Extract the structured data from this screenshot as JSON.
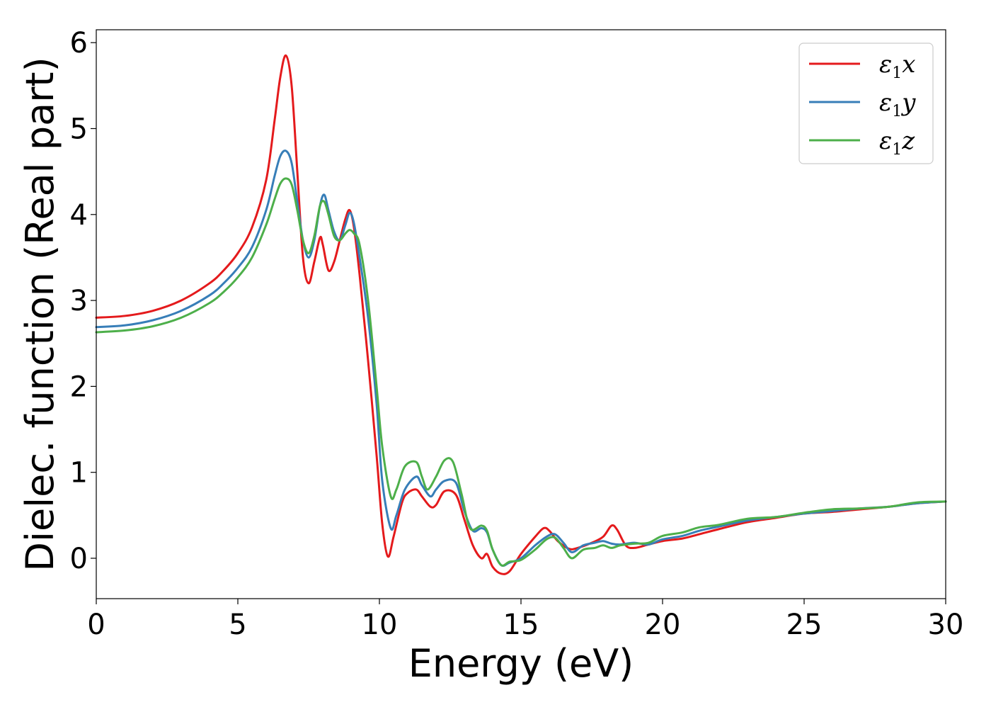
{
  "chart_data": {
    "type": "line",
    "title": "",
    "xlabel": "Energy (eV)",
    "ylabel": "Dielec. function (Real part)",
    "xlim": [
      0,
      30
    ],
    "ylim": [
      -0.47,
      6.15
    ],
    "xticks": [
      0,
      5,
      10,
      15,
      20,
      25,
      30
    ],
    "yticks": [
      0,
      1,
      2,
      3,
      4,
      5,
      6
    ],
    "xtick_labels": [
      "0",
      "5",
      "10",
      "15",
      "20",
      "25",
      "30"
    ],
    "ytick_labels": [
      "0",
      "1",
      "2",
      "3",
      "4",
      "5",
      "6"
    ],
    "grid": false,
    "legend_position": "top-right",
    "series": [
      {
        "name": "ε₁x",
        "legend": {
          "base": "ε",
          "sub": "1",
          "suffix": "x"
        },
        "color": "#e41a1c",
        "points": [
          [
            0,
            2.8
          ],
          [
            1,
            2.82
          ],
          [
            2,
            2.88
          ],
          [
            3,
            3.0
          ],
          [
            4,
            3.2
          ],
          [
            4.5,
            3.35
          ],
          [
            5,
            3.55
          ],
          [
            5.5,
            3.85
          ],
          [
            6,
            4.4
          ],
          [
            6.3,
            5.1
          ],
          [
            6.5,
            5.6
          ],
          [
            6.7,
            5.85
          ],
          [
            6.9,
            5.5
          ],
          [
            7.1,
            4.5
          ],
          [
            7.3,
            3.5
          ],
          [
            7.5,
            3.2
          ],
          [
            7.7,
            3.45
          ],
          [
            7.9,
            3.73
          ],
          [
            8.0,
            3.65
          ],
          [
            8.2,
            3.35
          ],
          [
            8.4,
            3.45
          ],
          [
            8.6,
            3.7
          ],
          [
            8.8,
            3.95
          ],
          [
            8.95,
            4.05
          ],
          [
            9.1,
            3.85
          ],
          [
            9.3,
            3.3
          ],
          [
            9.6,
            2.3
          ],
          [
            9.9,
            1.2
          ],
          [
            10.1,
            0.4
          ],
          [
            10.3,
            0.02
          ],
          [
            10.5,
            0.25
          ],
          [
            10.8,
            0.65
          ],
          [
            11.0,
            0.76
          ],
          [
            11.3,
            0.8
          ],
          [
            11.5,
            0.72
          ],
          [
            11.8,
            0.6
          ],
          [
            12.0,
            0.62
          ],
          [
            12.3,
            0.78
          ],
          [
            12.7,
            0.74
          ],
          [
            13.0,
            0.45
          ],
          [
            13.3,
            0.15
          ],
          [
            13.6,
            0.0
          ],
          [
            13.8,
            0.05
          ],
          [
            14.0,
            -0.1
          ],
          [
            14.3,
            -0.18
          ],
          [
            14.6,
            -0.15
          ],
          [
            15.0,
            0.05
          ],
          [
            15.5,
            0.25
          ],
          [
            15.8,
            0.35
          ],
          [
            16.0,
            0.32
          ],
          [
            16.3,
            0.2
          ],
          [
            16.7,
            0.11
          ],
          [
            17.0,
            0.12
          ],
          [
            17.5,
            0.18
          ],
          [
            17.9,
            0.25
          ],
          [
            18.2,
            0.38
          ],
          [
            18.4,
            0.33
          ],
          [
            18.7,
            0.15
          ],
          [
            19.0,
            0.12
          ],
          [
            19.5,
            0.16
          ],
          [
            20,
            0.2
          ],
          [
            20.7,
            0.23
          ],
          [
            21.3,
            0.28
          ],
          [
            22,
            0.34
          ],
          [
            23,
            0.42
          ],
          [
            24,
            0.47
          ],
          [
            25,
            0.52
          ],
          [
            26,
            0.54
          ],
          [
            27,
            0.57
          ],
          [
            28,
            0.6
          ],
          [
            29,
            0.64
          ],
          [
            30,
            0.66
          ]
        ]
      },
      {
        "name": "ε₁y",
        "legend": {
          "base": "ε",
          "sub": "1",
          "suffix": "y"
        },
        "color": "#377eb8",
        "points": [
          [
            0,
            2.69
          ],
          [
            1,
            2.71
          ],
          [
            2,
            2.77
          ],
          [
            3,
            2.88
          ],
          [
            4,
            3.06
          ],
          [
            4.5,
            3.2
          ],
          [
            5,
            3.38
          ],
          [
            5.5,
            3.62
          ],
          [
            6,
            4.05
          ],
          [
            6.3,
            4.45
          ],
          [
            6.5,
            4.68
          ],
          [
            6.7,
            4.74
          ],
          [
            6.9,
            4.6
          ],
          [
            7.1,
            4.15
          ],
          [
            7.3,
            3.7
          ],
          [
            7.5,
            3.5
          ],
          [
            7.7,
            3.7
          ],
          [
            7.9,
            4.1
          ],
          [
            8.05,
            4.23
          ],
          [
            8.2,
            4.05
          ],
          [
            8.4,
            3.8
          ],
          [
            8.6,
            3.7
          ],
          [
            8.8,
            3.88
          ],
          [
            8.95,
            4.02
          ],
          [
            9.1,
            3.9
          ],
          [
            9.3,
            3.5
          ],
          [
            9.6,
            2.8
          ],
          [
            9.9,
            1.8
          ],
          [
            10.1,
            0.9
          ],
          [
            10.4,
            0.35
          ],
          [
            10.6,
            0.5
          ],
          [
            10.9,
            0.8
          ],
          [
            11.3,
            0.95
          ],
          [
            11.5,
            0.85
          ],
          [
            11.8,
            0.72
          ],
          [
            12.0,
            0.8
          ],
          [
            12.3,
            0.9
          ],
          [
            12.7,
            0.88
          ],
          [
            13.0,
            0.55
          ],
          [
            13.3,
            0.32
          ],
          [
            13.6,
            0.35
          ],
          [
            13.8,
            0.3
          ],
          [
            14.0,
            0.1
          ],
          [
            14.3,
            -0.08
          ],
          [
            14.6,
            -0.05
          ],
          [
            15.0,
            0.0
          ],
          [
            15.5,
            0.15
          ],
          [
            15.9,
            0.25
          ],
          [
            16.2,
            0.28
          ],
          [
            16.5,
            0.18
          ],
          [
            16.8,
            0.07
          ],
          [
            17.2,
            0.15
          ],
          [
            17.6,
            0.18
          ],
          [
            17.9,
            0.2
          ],
          [
            18.2,
            0.17
          ],
          [
            18.5,
            0.16
          ],
          [
            19.0,
            0.18
          ],
          [
            19.5,
            0.16
          ],
          [
            20,
            0.22
          ],
          [
            20.7,
            0.26
          ],
          [
            21.3,
            0.32
          ],
          [
            22,
            0.37
          ],
          [
            23,
            0.44
          ],
          [
            24,
            0.48
          ],
          [
            25,
            0.52
          ],
          [
            26,
            0.55
          ],
          [
            27,
            0.58
          ],
          [
            28,
            0.6
          ],
          [
            29,
            0.64
          ],
          [
            30,
            0.66
          ]
        ]
      },
      {
        "name": "ε₁z",
        "legend": {
          "base": "ε",
          "sub": "1",
          "suffix": "z"
        },
        "color": "#4daf4a",
        "points": [
          [
            0,
            2.63
          ],
          [
            1,
            2.65
          ],
          [
            2,
            2.7
          ],
          [
            3,
            2.8
          ],
          [
            4,
            2.97
          ],
          [
            4.5,
            3.1
          ],
          [
            5,
            3.27
          ],
          [
            5.5,
            3.5
          ],
          [
            6,
            3.88
          ],
          [
            6.3,
            4.18
          ],
          [
            6.5,
            4.36
          ],
          [
            6.7,
            4.42
          ],
          [
            6.9,
            4.35
          ],
          [
            7.1,
            4.05
          ],
          [
            7.3,
            3.7
          ],
          [
            7.5,
            3.55
          ],
          [
            7.7,
            3.75
          ],
          [
            7.9,
            4.1
          ],
          [
            8.05,
            4.15
          ],
          [
            8.2,
            4.0
          ],
          [
            8.4,
            3.75
          ],
          [
            8.6,
            3.7
          ],
          [
            8.8,
            3.78
          ],
          [
            8.95,
            3.82
          ],
          [
            9.1,
            3.78
          ],
          [
            9.3,
            3.65
          ],
          [
            9.6,
            3.0
          ],
          [
            9.9,
            2.0
          ],
          [
            10.1,
            1.3
          ],
          [
            10.4,
            0.72
          ],
          [
            10.6,
            0.8
          ],
          [
            10.9,
            1.07
          ],
          [
            11.3,
            1.12
          ],
          [
            11.5,
            0.95
          ],
          [
            11.7,
            0.8
          ],
          [
            12.0,
            0.95
          ],
          [
            12.3,
            1.14
          ],
          [
            12.6,
            1.12
          ],
          [
            12.9,
            0.75
          ],
          [
            13.2,
            0.35
          ],
          [
            13.6,
            0.38
          ],
          [
            13.8,
            0.32
          ],
          [
            14.0,
            0.1
          ],
          [
            14.3,
            -0.08
          ],
          [
            14.6,
            -0.04
          ],
          [
            15.0,
            -0.02
          ],
          [
            15.5,
            0.1
          ],
          [
            15.9,
            0.22
          ],
          [
            16.2,
            0.24
          ],
          [
            16.5,
            0.12
          ],
          [
            16.8,
            0.0
          ],
          [
            17.2,
            0.1
          ],
          [
            17.6,
            0.12
          ],
          [
            17.9,
            0.15
          ],
          [
            18.2,
            0.12
          ],
          [
            18.5,
            0.15
          ],
          [
            19.0,
            0.17
          ],
          [
            19.5,
            0.18
          ],
          [
            20,
            0.26
          ],
          [
            20.7,
            0.3
          ],
          [
            21.3,
            0.36
          ],
          [
            22,
            0.39
          ],
          [
            23,
            0.46
          ],
          [
            24,
            0.48
          ],
          [
            25,
            0.53
          ],
          [
            26,
            0.57
          ],
          [
            27,
            0.58
          ],
          [
            28,
            0.6
          ],
          [
            29,
            0.65
          ],
          [
            30,
            0.66
          ]
        ]
      }
    ]
  }
}
